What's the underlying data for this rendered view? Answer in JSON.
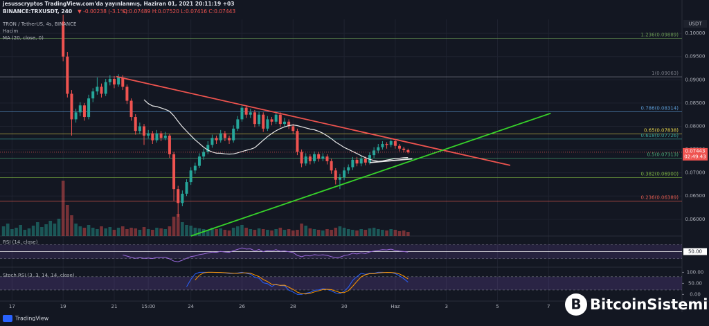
{
  "header": {
    "author_line": "jesusscryptos TradingView.com'da yayınlanmış, Haziran 01, 2021 20:11:19 +03",
    "symbol": "BINANCE:TRXUSDT, 240",
    "change": "▼ -0.00238 (-3.1%)",
    "ohlc": "O:0.07489 H:0.07520 L:0.07416 C:0.07443"
  },
  "legend": {
    "symbol": "TRON / TetherUS, 4s, BINANCE",
    "volume": "Hacim"
  },
  "footer": {
    "brand": "TradingView",
    "watermark": "BitcoinSistemi"
  },
  "chart_data": {
    "type": "candlestick",
    "currency": "USDT",
    "up_color": "#26a69a",
    "down_color": "#ef5350",
    "categories": [
      null,
      null,
      "17",
      null,
      null,
      null,
      null,
      null,
      null,
      null,
      null,
      null,
      null,
      null,
      "19",
      null,
      null,
      null,
      null,
      null,
      null,
      null,
      null,
      null,
      null,
      null,
      "21",
      null,
      null,
      null,
      null,
      null,
      null,
      null,
      "15:00",
      null,
      null,
      null,
      null,
      null,
      null,
      null,
      null,
      null,
      "24",
      null,
      null,
      null,
      null,
      null,
      null,
      null,
      null,
      null,
      null,
      null,
      "26",
      null,
      null,
      null,
      null,
      null,
      null,
      null,
      null,
      null,
      null,
      null,
      "28",
      null,
      null,
      null,
      null,
      null,
      null,
      null,
      null,
      null,
      null,
      null,
      "30",
      null,
      null,
      null,
      null,
      null,
      null,
      null,
      null,
      null,
      null,
      null,
      "Haz",
      null,
      null,
      null,
      null,
      null,
      null,
      null,
      null,
      null,
      null,
      null,
      "3",
      null,
      null,
      null,
      null,
      null,
      null,
      null,
      null,
      null,
      null,
      null,
      "5",
      null,
      null,
      null,
      null,
      null,
      null,
      null,
      null,
      null,
      null,
      null,
      "7"
    ],
    "open": [
      null,
      null,
      null,
      null,
      null,
      null,
      null,
      null,
      null,
      null,
      null,
      null,
      null,
      null,
      0.1025,
      0.095,
      0.087,
      0.0815,
      0.083,
      0.0845,
      0.082,
      0.086,
      0.0875,
      0.0885,
      0.087,
      0.0895,
      0.0902,
      0.089,
      0.0905,
      0.0885,
      0.0855,
      0.082,
      0.079,
      0.08,
      0.078,
      0.0785,
      0.077,
      0.0785,
      0.0775,
      0.078,
      0.074,
      0.0665,
      0.0635,
      0.0655,
      0.068,
      0.0705,
      0.0715,
      0.0735,
      0.0745,
      0.076,
      0.0775,
      0.077,
      0.0785,
      0.0775,
      0.077,
      0.0795,
      0.0815,
      0.084,
      0.0825,
      0.083,
      0.0805,
      0.0825,
      0.0795,
      0.0815,
      0.081,
      0.0825,
      0.0805,
      0.081,
      0.08,
      0.079,
      0.0745,
      0.072,
      0.0735,
      0.0725,
      0.074,
      0.073,
      0.0735,
      0.0725,
      0.0705,
      0.0685,
      0.069,
      0.0705,
      0.0712,
      0.0728,
      0.072,
      0.073,
      0.0722,
      0.0738,
      0.0748,
      0.0755,
      0.0762,
      0.076,
      0.0768,
      0.0758,
      0.0752,
      0.07489,
      null,
      null,
      null,
      null,
      null,
      null,
      null,
      null,
      null,
      null,
      null,
      null,
      null,
      null,
      null,
      null,
      null,
      null,
      null,
      null,
      null,
      null,
      null,
      null,
      null,
      null,
      null,
      null,
      null,
      null,
      null,
      null,
      null
    ],
    "high": [
      null,
      null,
      null,
      null,
      null,
      null,
      null,
      null,
      null,
      null,
      null,
      null,
      null,
      null,
      0.104,
      0.096,
      0.0878,
      0.0838,
      0.0852,
      0.085,
      0.0868,
      0.0882,
      0.0905,
      0.0892,
      0.0902,
      0.091,
      0.0908,
      0.0912,
      0.091,
      0.089,
      0.086,
      0.0826,
      0.0808,
      0.0805,
      0.0792,
      0.079,
      0.0792,
      0.079,
      0.0788,
      0.0784,
      0.0745,
      0.0672,
      0.0662,
      0.0686,
      0.0712,
      0.0722,
      0.0742,
      0.0752,
      0.0768,
      0.0782,
      0.078,
      0.0792,
      0.079,
      0.078,
      0.0802,
      0.0822,
      0.0848,
      0.0845,
      0.0838,
      0.0835,
      0.0832,
      0.083,
      0.0822,
      0.082,
      0.0832,
      0.083,
      0.0818,
      0.0815,
      0.0805,
      0.0795,
      0.075,
      0.0742,
      0.074,
      0.0746,
      0.0745,
      0.0742,
      0.074,
      0.073,
      0.071,
      0.0698,
      0.0712,
      0.0718,
      0.0734,
      0.0734,
      0.0736,
      0.0735,
      0.0744,
      0.0755,
      0.0762,
      0.0768,
      0.0766,
      0.0772,
      0.0772,
      0.0762,
      0.0756,
      0.0752,
      null,
      null,
      null,
      null,
      null,
      null,
      null,
      null,
      null,
      null,
      null,
      null,
      null,
      null,
      null,
      null,
      null,
      null,
      null,
      null,
      null,
      null,
      null,
      null,
      null,
      null,
      null,
      null,
      null,
      null,
      null,
      null,
      null
    ],
    "low": [
      null,
      null,
      null,
      null,
      null,
      null,
      null,
      null,
      null,
      null,
      null,
      null,
      null,
      null,
      0.094,
      0.0862,
      0.078,
      0.0808,
      0.0822,
      0.0812,
      0.0815,
      0.0852,
      0.0868,
      0.0862,
      0.0865,
      0.0888,
      0.0882,
      0.0885,
      0.0878,
      0.0848,
      0.0812,
      0.0782,
      0.0784,
      0.076,
      0.0774,
      0.0762,
      0.0765,
      0.0768,
      0.077,
      0.0732,
      0.064,
      0.0605,
      0.0628,
      0.065,
      0.0674,
      0.0698,
      0.071,
      0.0728,
      0.074,
      0.0754,
      0.0762,
      0.0765,
      0.0768,
      0.0762,
      0.0765,
      0.079,
      0.081,
      0.0818,
      0.0818,
      0.0798,
      0.08,
      0.0788,
      0.079,
      0.0802,
      0.0805,
      0.0798,
      0.08,
      0.0794,
      0.0784,
      0.0738,
      0.0712,
      0.0715,
      0.0718,
      0.072,
      0.0724,
      0.0725,
      0.0718,
      0.0698,
      0.0675,
      0.0665,
      0.0684,
      0.0698,
      0.0706,
      0.0714,
      0.0714,
      0.0716,
      0.0718,
      0.0732,
      0.0742,
      0.075,
      0.0752,
      0.0755,
      0.0752,
      0.0746,
      0.0744,
      0.07416,
      null,
      null,
      null,
      null,
      null,
      null,
      null,
      null,
      null,
      null,
      null,
      null,
      null,
      null,
      null,
      null,
      null,
      null,
      null,
      null,
      null,
      null,
      null,
      null,
      null,
      null,
      null,
      null,
      null,
      null,
      null,
      null,
      null
    ],
    "close": [
      null,
      null,
      null,
      null,
      null,
      null,
      null,
      null,
      null,
      null,
      null,
      null,
      null,
      null,
      0.095,
      0.087,
      0.0815,
      0.083,
      0.0845,
      0.082,
      0.086,
      0.0875,
      0.0885,
      0.087,
      0.0895,
      0.0902,
      0.089,
      0.0905,
      0.0885,
      0.0855,
      0.082,
      0.079,
      0.08,
      0.078,
      0.0785,
      0.077,
      0.0785,
      0.0775,
      0.078,
      0.074,
      0.0665,
      0.0635,
      0.0655,
      0.068,
      0.0705,
      0.0715,
      0.0735,
      0.0745,
      0.076,
      0.0775,
      0.077,
      0.0785,
      0.0775,
      0.077,
      0.0795,
      0.0815,
      0.084,
      0.0825,
      0.083,
      0.0805,
      0.0825,
      0.0795,
      0.0815,
      0.081,
      0.0825,
      0.0805,
      0.081,
      0.08,
      0.079,
      0.0745,
      0.072,
      0.0735,
      0.0725,
      0.074,
      0.073,
      0.0735,
      0.0725,
      0.0705,
      0.0685,
      0.069,
      0.0705,
      0.0712,
      0.0728,
      0.072,
      0.073,
      0.0722,
      0.0738,
      0.0748,
      0.0755,
      0.0762,
      0.076,
      0.0768,
      0.0758,
      0.0752,
      0.07489,
      0.07443,
      null,
      null,
      null,
      null,
      null,
      null,
      null,
      null,
      null,
      null,
      null,
      null,
      null,
      null,
      null,
      null,
      null,
      null,
      null,
      null,
      null,
      null,
      null,
      null,
      null,
      null,
      null,
      null,
      null,
      null,
      null,
      null,
      null
    ],
    "volume": [
      14,
      18,
      10,
      12,
      16,
      9,
      11,
      15,
      20,
      13,
      17,
      22,
      18,
      25,
      80,
      45,
      30,
      18,
      14,
      12,
      16,
      12,
      10,
      14,
      11,
      13,
      9,
      12,
      14,
      10,
      12,
      11,
      9,
      13,
      10,
      9,
      12,
      11,
      10,
      14,
      28,
      32,
      20,
      16,
      15,
      12,
      11,
      10,
      9,
      12,
      10,
      11,
      9,
      8,
      12,
      14,
      16,
      12,
      10,
      9,
      11,
      10,
      9,
      8,
      10,
      12,
      9,
      10,
      8,
      9,
      18,
      15,
      11,
      10,
      9,
      8,
      10,
      9,
      12,
      14,
      12,
      10,
      9,
      8,
      10,
      9,
      11,
      12,
      10,
      9,
      8,
      10,
      9,
      7,
      8,
      6,
      null,
      null,
      null,
      null,
      null,
      null,
      null,
      null,
      null,
      null,
      null,
      null,
      null,
      null,
      null,
      null,
      null,
      null,
      null,
      null,
      null,
      null,
      null,
      null,
      null,
      null,
      null,
      null,
      null,
      null,
      null,
      null,
      null
    ],
    "ylim": [
      0.0564,
      0.103
    ],
    "yticks": [
      {
        "value": 0.06,
        "label": "0.06000"
      },
      {
        "value": 0.065,
        "label": "0.06500"
      },
      {
        "value": 0.07,
        "label": "0.07000"
      },
      {
        "value": 0.075,
        "label": "0.07500"
      },
      {
        "value": 0.08,
        "label": "0.08000"
      },
      {
        "value": 0.085,
        "label": "0.08500"
      },
      {
        "value": 0.09,
        "label": "0.09000"
      },
      {
        "value": 0.095,
        "label": "0.09500"
      },
      {
        "value": 0.1,
        "label": "0.10000"
      }
    ],
    "last_price": 0.07443,
    "countdown": "02:49:43",
    "ma": {
      "label": "MA (20, close, 0)",
      "period": 20,
      "color": "#e8e8e8"
    },
    "fib": [
      {
        "value": 0.09889,
        "label": "1.236(0.09889)",
        "color": "#6a9955"
      },
      {
        "value": 0.09063,
        "label": "1(0.09063)",
        "color": "#787b86"
      },
      {
        "value": 0.08314,
        "label": "0.786(0.08314)",
        "color": "#5b9cd6"
      },
      {
        "value": 0.07838,
        "label": "0.65(0.07838)",
        "color": "#e6d44a"
      },
      {
        "value": 0.07726,
        "label": "0.618(0.07726)",
        "color": "#3aa49a"
      },
      {
        "value": 0.07313,
        "label": "0.5(0.07313)",
        "color": "#4caf7a"
      },
      {
        "value": 0.069,
        "label": "0.382(0.06900)",
        "color": "#7cb342"
      },
      {
        "value": 0.06389,
        "label": "0.236(0.06389)",
        "color": "#e05a4f"
      }
    ],
    "trendlines": [
      {
        "color": "#f0544f",
        "x": [
          26.5,
          119
        ],
        "y": [
          0.0907,
          0.0716
        ]
      },
      {
        "color": "#37d42a",
        "x": [
          44,
          128.5
        ],
        "y": [
          0.0564,
          0.0828
        ]
      },
      {
        "color": "#e8e8e8",
        "x": [
          86,
          96
        ],
        "y": [
          0.0722,
          0.073
        ]
      }
    ],
    "rsi": {
      "title": "RSI (14, close)",
      "period": 14,
      "color": "#9c6ade",
      "ylim": [
        10,
        90
      ],
      "band": [
        30,
        70
      ],
      "yticks": [
        {
          "value": 50,
          "label": "50.00"
        }
      ]
    },
    "stoch": {
      "title": "Stoch RSI (3, 3, 14, 14, close)",
      "k": 3,
      "d": 3,
      "rsi_length": 14,
      "stoch_length": 14,
      "k_color": "#2962ff",
      "d_color": "#ff9800",
      "ylim": [
        -24,
        117
      ],
      "band": [
        20,
        80
      ],
      "yticks": [
        {
          "value": 100,
          "label": "100.00"
        },
        {
          "value": 50,
          "label": "50.00"
        },
        {
          "value": 0,
          "label": "0.00"
        }
      ]
    }
  }
}
